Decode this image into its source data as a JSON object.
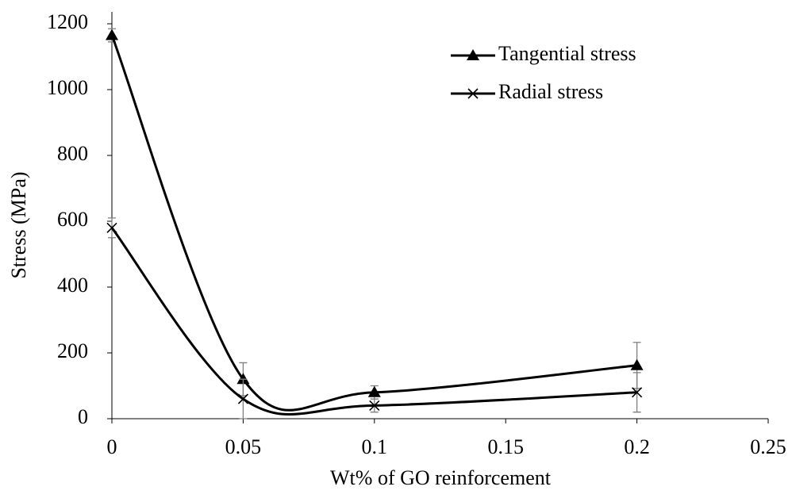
{
  "chart_data": {
    "type": "line",
    "smooth": true,
    "x_label": "Wt% of GO reinforcement",
    "y_label": "Stress (MPa)",
    "x": [
      0,
      0.05,
      0.1,
      0.2
    ],
    "series": [
      {
        "name": "Tangential stress",
        "color": "#000000",
        "marker": "triangle",
        "values": [
          1165,
          120,
          80,
          162
        ],
        "errors": [
          20,
          50,
          20,
          70
        ]
      },
      {
        "name": "Radial stress",
        "color": "#000000",
        "marker": "x",
        "values": [
          580,
          60,
          40,
          80
        ],
        "errors": [
          30,
          60,
          20,
          60
        ]
      }
    ],
    "xlim": [
      0,
      0.25
    ],
    "xticks": [
      0,
      0.05,
      0.1,
      0.15,
      0.2,
      0.25
    ],
    "ylim": [
      0,
      1200
    ],
    "yticks": [
      0,
      200,
      400,
      600,
      800,
      1000,
      1200
    ],
    "grid": false,
    "legend": "upper right",
    "error_color": "#7f7f7f"
  }
}
